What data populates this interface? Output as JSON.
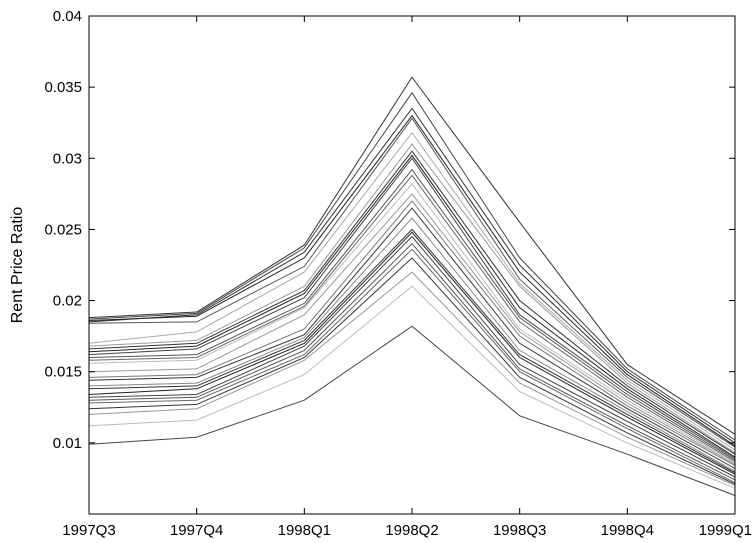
{
  "chart_data": {
    "type": "line",
    "title": "",
    "xlabel": "",
    "ylabel": "Rent Price Ratio",
    "categories": [
      "1997Q3",
      "1997Q4",
      "1998Q1",
      "1998Q2",
      "1998Q3",
      "1998Q4",
      "1999Q1"
    ],
    "ylim": [
      0.005,
      0.04
    ],
    "yticks": [
      0.01,
      0.015,
      0.02,
      0.025,
      0.03,
      0.035,
      0.04
    ],
    "ytick_labels": [
      "0.01",
      "0.015",
      "0.02",
      "0.025",
      "0.03",
      "0.035",
      "0.04"
    ],
    "grid": false,
    "legend": "none",
    "series": [
      {
        "values": [
          0.0188,
          0.0192,
          0.0239,
          0.0357,
          0.0255,
          0.0155,
          0.0106
        ],
        "color": "#333333"
      },
      {
        "values": [
          0.0187,
          0.0191,
          0.0237,
          0.0346,
          0.023,
          0.0152,
          0.0102
        ],
        "color": "#444444"
      },
      {
        "values": [
          0.0185,
          0.019,
          0.0234,
          0.0335,
          0.0225,
          0.015,
          0.01
        ],
        "color": "#333333"
      },
      {
        "values": [
          0.0186,
          0.0189,
          0.023,
          0.033,
          0.022,
          0.0148,
          0.0098
        ],
        "color": "#222222"
      },
      {
        "values": [
          0.0184,
          0.0185,
          0.0224,
          0.0328,
          0.0215,
          0.0146,
          0.0097
        ],
        "color": "#555555"
      },
      {
        "values": [
          0.017,
          0.0178,
          0.022,
          0.0318,
          0.0212,
          0.0144,
          0.0095
        ],
        "color": "#aaaaaa"
      },
      {
        "values": [
          0.0168,
          0.0172,
          0.021,
          0.031,
          0.021,
          0.0142,
          0.0093
        ],
        "color": "#999999"
      },
      {
        "values": [
          0.0166,
          0.017,
          0.0207,
          0.0305,
          0.02,
          0.014,
          0.0092
        ],
        "color": "#333333"
      },
      {
        "values": [
          0.0164,
          0.0168,
          0.0205,
          0.0302,
          0.0195,
          0.0138,
          0.009
        ],
        "color": "#222222"
      },
      {
        "values": [
          0.0162,
          0.0166,
          0.0202,
          0.03,
          0.019,
          0.0136,
          0.0089
        ],
        "color": "#444444"
      },
      {
        "values": [
          0.016,
          0.0162,
          0.0198,
          0.0292,
          0.0188,
          0.0134,
          0.0088
        ],
        "color": "#555555"
      },
      {
        "values": [
          0.0158,
          0.016,
          0.0196,
          0.0288,
          0.0185,
          0.0132,
          0.0087
        ],
        "color": "#666666"
      },
      {
        "values": [
          0.0156,
          0.0158,
          0.0195,
          0.0282,
          0.018,
          0.013,
          0.0086
        ],
        "color": "#bbbbbb"
      },
      {
        "values": [
          0.015,
          0.0152,
          0.019,
          0.0275,
          0.0178,
          0.0128,
          0.0085
        ],
        "color": "#999999"
      },
      {
        "values": [
          0.0146,
          0.0148,
          0.018,
          0.027,
          0.0175,
          0.0126,
          0.0084
        ],
        "color": "#777777"
      },
      {
        "values": [
          0.0144,
          0.0146,
          0.0176,
          0.0265,
          0.017,
          0.0124,
          0.0082
        ],
        "color": "#333333"
      },
      {
        "values": [
          0.014,
          0.0142,
          0.0174,
          0.0258,
          0.0165,
          0.0122,
          0.008
        ],
        "color": "#888888"
      },
      {
        "values": [
          0.0138,
          0.014,
          0.0172,
          0.025,
          0.0162,
          0.012,
          0.0079
        ],
        "color": "#333333"
      },
      {
        "values": [
          0.0134,
          0.0138,
          0.017,
          0.0248,
          0.016,
          0.0118,
          0.0078
        ],
        "color": "#222222"
      },
      {
        "values": [
          0.0132,
          0.0134,
          0.0168,
          0.0245,
          0.0155,
          0.0115,
          0.0076
        ],
        "color": "#444444"
      },
      {
        "values": [
          0.013,
          0.0132,
          0.0165,
          0.024,
          0.0152,
          0.0112,
          0.0074
        ],
        "color": "#555555"
      },
      {
        "values": [
          0.0128,
          0.013,
          0.0162,
          0.0236,
          0.015,
          0.011,
          0.0072
        ],
        "color": "#666666"
      },
      {
        "values": [
          0.0124,
          0.0127,
          0.016,
          0.023,
          0.0146,
          0.0107,
          0.0071
        ],
        "color": "#333333"
      },
      {
        "values": [
          0.012,
          0.0124,
          0.0158,
          0.022,
          0.0142,
          0.0104,
          0.007
        ],
        "color": "#999999"
      },
      {
        "values": [
          0.0112,
          0.0116,
          0.0148,
          0.021,
          0.0136,
          0.01,
          0.0068
        ],
        "color": "#bbbbbb"
      },
      {
        "values": [
          0.0099,
          0.0104,
          0.013,
          0.0182,
          0.0119,
          0.0092,
          0.0063
        ],
        "color": "#444444"
      }
    ]
  }
}
